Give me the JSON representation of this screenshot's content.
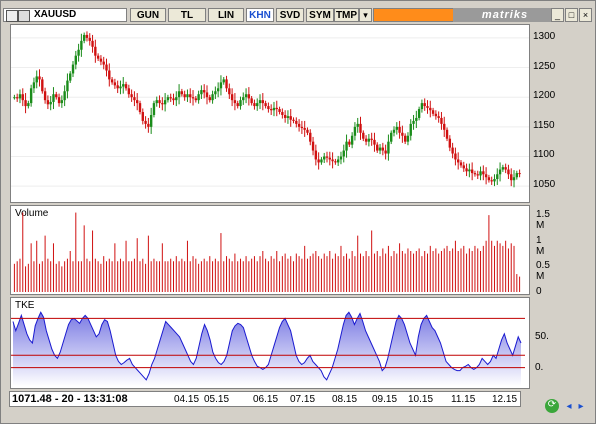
{
  "toolbar": {
    "symbol": "XAUUSD",
    "buttons": [
      "GUN",
      "TL",
      "LIN",
      "KHN",
      "SVD",
      "SYM",
      "TMP"
    ],
    "active": "KHN",
    "brand": "matriks",
    "icons": [
      "chart-icon",
      "compare-icon",
      "dropdown-icon",
      "minimize-icon",
      "restore-icon",
      "close-icon"
    ]
  },
  "panels": {
    "volume_label": "Volume",
    "indicator_label": "TKE"
  },
  "status": {
    "readout": "1071.48 - 20 - 13:31:08",
    "months": [
      "04.15",
      "05.15",
      "06.15",
      "07.15",
      "08.15",
      "09.15",
      "10.15",
      "11.15",
      "12.15"
    ]
  },
  "nav": {
    "refresh": "refresh-icon",
    "left": "arrow-left-icon",
    "right": "arrow-right-icon"
  },
  "chart_data": [
    {
      "type": "candlestick",
      "title": "XAUUSD",
      "yticks": [
        1050,
        1100,
        1150,
        1200,
        1250,
        1300
      ],
      "ylim": [
        1030,
        1315
      ],
      "up_color": "#1a8c1a",
      "down_color": "#d01010",
      "closes": [
        1200,
        1198,
        1205,
        1195,
        1185,
        1190,
        1215,
        1225,
        1235,
        1230,
        1210,
        1195,
        1188,
        1192,
        1205,
        1200,
        1190,
        1195,
        1210,
        1228,
        1240,
        1255,
        1270,
        1280,
        1295,
        1305,
        1300,
        1295,
        1285,
        1270,
        1265,
        1260,
        1255,
        1245,
        1230,
        1225,
        1220,
        1215,
        1218,
        1222,
        1215,
        1205,
        1200,
        1195,
        1190,
        1175,
        1160,
        1155,
        1150,
        1170,
        1190,
        1195,
        1190,
        1188,
        1195,
        1200,
        1198,
        1195,
        1200,
        1210,
        1205,
        1200,
        1205,
        1200,
        1198,
        1195,
        1205,
        1212,
        1208,
        1200,
        1195,
        1205,
        1210,
        1215,
        1225,
        1230,
        1215,
        1205,
        1195,
        1190,
        1185,
        1195,
        1200,
        1205,
        1198,
        1190,
        1185,
        1190,
        1195,
        1190,
        1185,
        1180,
        1178,
        1182,
        1180,
        1175,
        1170,
        1165,
        1168,
        1162,
        1160,
        1155,
        1150,
        1148,
        1145,
        1140,
        1125,
        1110,
        1095,
        1090,
        1095,
        1100,
        1098,
        1095,
        1092,
        1090,
        1095,
        1100,
        1110,
        1125,
        1120,
        1135,
        1150,
        1155,
        1140,
        1130,
        1125,
        1130,
        1128,
        1120,
        1110,
        1115,
        1110,
        1105,
        1125,
        1140,
        1145,
        1150,
        1140,
        1135,
        1125,
        1135,
        1155,
        1160,
        1165,
        1180,
        1190,
        1185,
        1182,
        1178,
        1172,
        1168,
        1165,
        1155,
        1145,
        1130,
        1115,
        1105,
        1095,
        1090,
        1085,
        1080,
        1075,
        1078,
        1072,
        1070,
        1068,
        1075,
        1070,
        1065,
        1060,
        1058,
        1062,
        1070,
        1078,
        1082,
        1078,
        1070,
        1060,
        1065,
        1072,
        1071
      ]
    },
    {
      "type": "bar",
      "title": "Volume",
      "yticks": [
        0,
        0.5,
        1,
        1.5
      ],
      "ytick_labels": [
        "0",
        "0.5 M",
        "1 M",
        "1.5 M"
      ],
      "ylim": [
        0,
        1.6
      ],
      "unit": "M",
      "color": "#d01010",
      "values": [
        0.55,
        0.6,
        0.65,
        1.55,
        0.5,
        0.55,
        0.95,
        0.6,
        1.0,
        0.55,
        0.6,
        1.1,
        0.65,
        0.6,
        0.95,
        0.55,
        0.6,
        0.5,
        0.6,
        0.65,
        0.8,
        0.6,
        1.55,
        0.6,
        0.6,
        1.3,
        0.65,
        0.6,
        1.2,
        0.65,
        0.6,
        0.55,
        0.7,
        0.6,
        0.65,
        0.6,
        0.95,
        0.6,
        0.65,
        0.6,
        1.0,
        0.6,
        0.6,
        0.65,
        1.05,
        0.6,
        0.65,
        0.55,
        1.1,
        0.6,
        0.65,
        0.6,
        0.6,
        0.95,
        0.6,
        0.6,
        0.65,
        0.6,
        0.7,
        0.6,
        0.65,
        0.6,
        1.0,
        0.6,
        0.7,
        0.65,
        0.55,
        0.6,
        0.65,
        0.6,
        0.7,
        0.6,
        0.65,
        0.6,
        1.15,
        0.6,
        0.7,
        0.65,
        0.6,
        0.75,
        0.6,
        0.65,
        0.6,
        0.7,
        0.6,
        0.65,
        0.7,
        0.6,
        0.7,
        0.8,
        0.65,
        0.6,
        0.7,
        0.65,
        0.8,
        0.6,
        0.7,
        0.75,
        0.65,
        0.7,
        0.6,
        0.75,
        0.7,
        0.65,
        0.9,
        0.65,
        0.7,
        0.75,
        0.8,
        0.7,
        0.65,
        0.75,
        0.7,
        0.8,
        0.65,
        0.75,
        0.7,
        0.9,
        0.7,
        0.75,
        0.65,
        0.8,
        0.7,
        1.1,
        0.75,
        0.7,
        0.8,
        0.7,
        1.2,
        0.75,
        0.8,
        0.7,
        0.85,
        0.75,
        0.9,
        0.7,
        0.8,
        0.75,
        0.95,
        0.8,
        0.75,
        0.85,
        0.8,
        0.75,
        0.8,
        0.85,
        0.7,
        0.8,
        0.75,
        0.9,
        0.8,
        0.85,
        0.75,
        0.8,
        0.85,
        0.9,
        0.8,
        0.85,
        1.0,
        0.8,
        0.85,
        0.9,
        0.75,
        0.85,
        0.8,
        0.9,
        0.85,
        0.8,
        0.9,
        1.0,
        1.5,
        1.0,
        0.9,
        1.0,
        0.95,
        0.9,
        1.0,
        0.85,
        0.95,
        0.9,
        0.35,
        0.3
      ]
    },
    {
      "type": "area",
      "title": "TKE",
      "yticks": [
        0,
        50
      ],
      "ylim": [
        -30,
        110
      ],
      "upper_band": 80,
      "lower_band": 20,
      "color": "#1a1ad0",
      "values": [
        75,
        60,
        72,
        85,
        70,
        55,
        45,
        40,
        68,
        80,
        90,
        82,
        60,
        45,
        30,
        20,
        15,
        25,
        40,
        55,
        70,
        78,
        80,
        76,
        72,
        80,
        85,
        80,
        70,
        60,
        50,
        55,
        70,
        78,
        75,
        60,
        40,
        20,
        10,
        5,
        8,
        12,
        15,
        5,
        0,
        -5,
        -10,
        -15,
        -20,
        -10,
        5,
        15,
        30,
        45,
        60,
        75,
        70,
        65,
        60,
        55,
        50,
        40,
        30,
        20,
        10,
        5,
        15,
        35,
        55,
        70,
        60,
        45,
        25,
        15,
        8,
        5,
        10,
        20,
        40,
        60,
        68,
        72,
        70,
        65,
        50,
        35,
        20,
        10,
        2,
        0,
        -3,
        0,
        5,
        20,
        35,
        50,
        65,
        75,
        80,
        70,
        60,
        40,
        20,
        10,
        5,
        8,
        15,
        20,
        10,
        5,
        0,
        -5,
        -15,
        -20,
        -10,
        0,
        15,
        30,
        50,
        70,
        85,
        90,
        82,
        70,
        80,
        88,
        75,
        60,
        50,
        40,
        30,
        20,
        10,
        -5,
        0,
        15,
        35,
        55,
        75,
        85,
        80,
        70,
        55,
        40,
        30,
        20,
        50,
        70,
        80,
        85,
        75,
        65,
        60,
        50,
        40,
        25,
        10,
        5,
        0,
        -3,
        -5,
        -5,
        0,
        2,
        5,
        0,
        -3,
        0,
        5,
        15,
        10,
        5,
        10,
        20,
        15,
        30,
        45,
        55,
        40,
        30,
        20,
        35,
        50,
        40
      ]
    }
  ]
}
